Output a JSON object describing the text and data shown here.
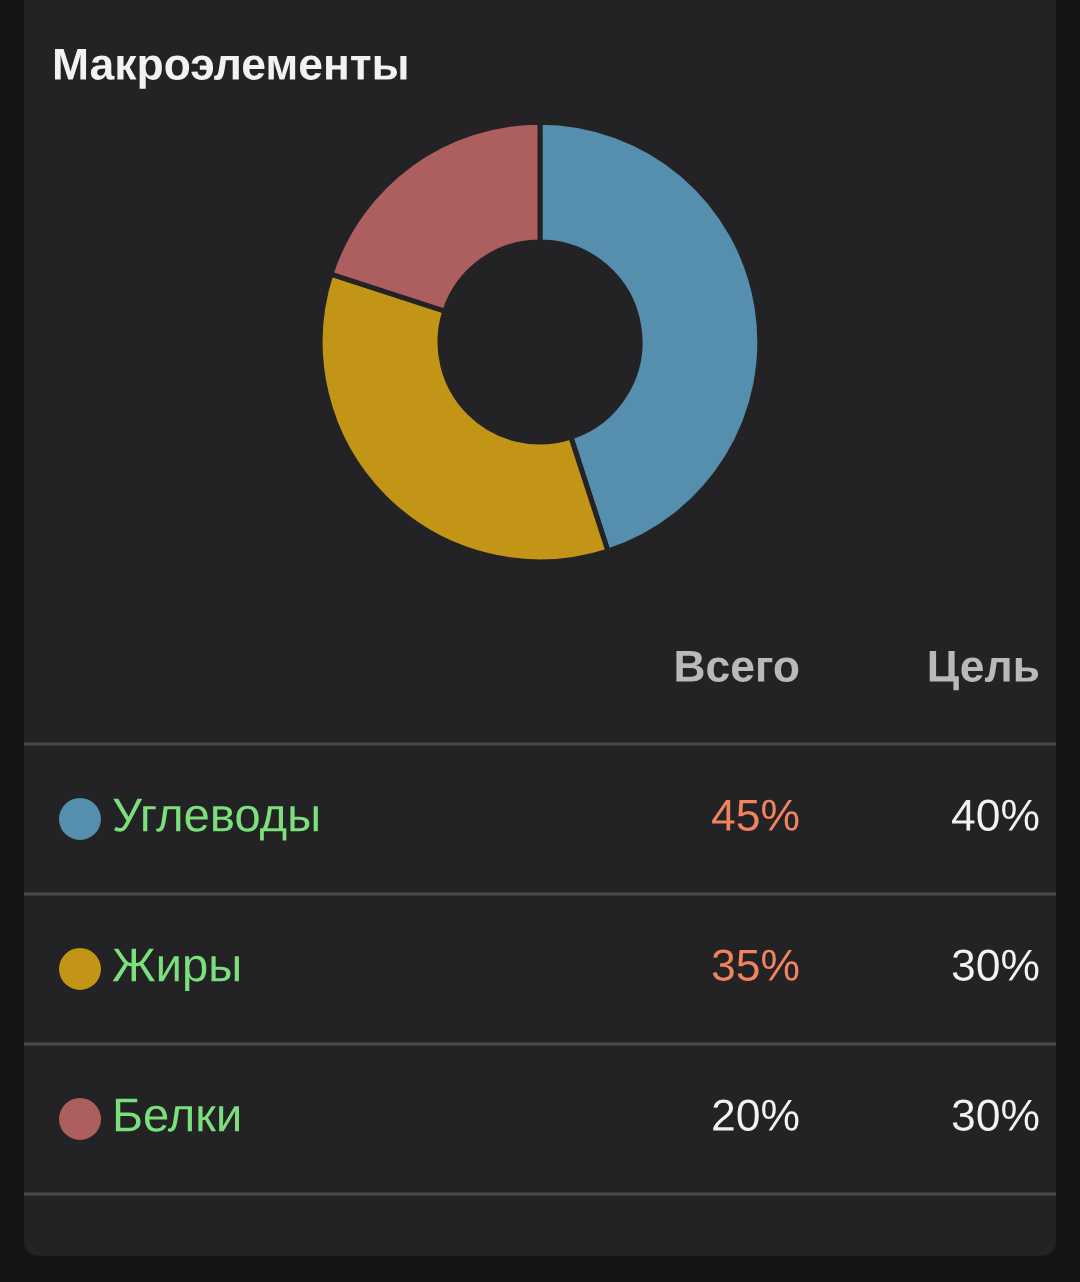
{
  "chart_data": [
    {
      "type": "donut",
      "title": "Макроэлементы",
      "categories": [
        "Углеводы",
        "Жиры",
        "Белки"
      ],
      "values": [
        45,
        35,
        20
      ],
      "colors": [
        "#568fae",
        "#c39516",
        "#ad5f60"
      ],
      "value_labels": [
        "45%",
        "35%",
        "20%"
      ],
      "annotations": [
        "Всего"
      ],
      "legend": "bottom"
    },
    {
      "type": "other",
      "title": "Цель",
      "values": [
        40,
        30,
        30
      ],
      "value_labels": [
        "40%",
        "30%",
        "30%"
      ]
    }
  ]
}
